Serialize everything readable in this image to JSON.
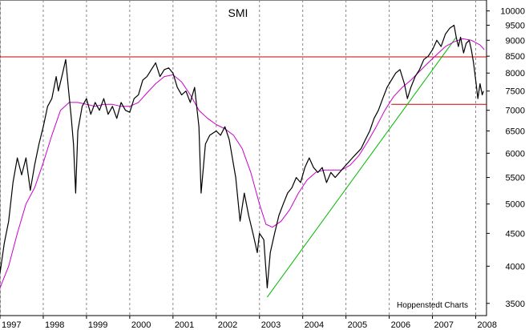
{
  "chart_data": {
    "type": "line",
    "title": "SMI",
    "credit": "Hoppenstedt Charts",
    "y_scale": "log",
    "ylim": [
      3350,
      10400
    ],
    "yticks": [
      3500,
      4000,
      4500,
      5000,
      5500,
      6000,
      6500,
      7000,
      7500,
      8000,
      8500,
      9000,
      9500,
      10000
    ],
    "xlim": [
      1997.0,
      2008.25
    ],
    "x_tick_labels": [
      "1997",
      "1998",
      "1999",
      "2000",
      "2001",
      "2002",
      "2003",
      "2004",
      "2005",
      "2006",
      "2007",
      "2008"
    ],
    "grid": "vertical dashed",
    "colors": {
      "price": "#000000",
      "average": "#cc00cc",
      "resistance": "#cc0000",
      "trend": "#00bb00"
    },
    "series": [
      {
        "name": "",
        "role": "price",
        "points": [
          [
            1997.0,
            3900
          ],
          [
            1997.1,
            4350
          ],
          [
            1997.2,
            4700
          ],
          [
            1997.3,
            5400
          ],
          [
            1997.4,
            5900
          ],
          [
            1997.5,
            5550
          ],
          [
            1997.6,
            5900
          ],
          [
            1997.7,
            5250
          ],
          [
            1997.8,
            5750
          ],
          [
            1997.9,
            6200
          ],
          [
            1998.0,
            6600
          ],
          [
            1998.1,
            7100
          ],
          [
            1998.2,
            7300
          ],
          [
            1998.3,
            7900
          ],
          [
            1998.35,
            7500
          ],
          [
            1998.45,
            8000
          ],
          [
            1998.52,
            8400
          ],
          [
            1998.58,
            7600
          ],
          [
            1998.65,
            6800
          ],
          [
            1998.7,
            6200
          ],
          [
            1998.75,
            5200
          ],
          [
            1998.8,
            6500
          ],
          [
            1998.9,
            7100
          ],
          [
            1999.0,
            7300
          ],
          [
            1999.1,
            6900
          ],
          [
            1999.2,
            7200
          ],
          [
            1999.3,
            7000
          ],
          [
            1999.4,
            7300
          ],
          [
            1999.5,
            6900
          ],
          [
            1999.6,
            7100
          ],
          [
            1999.7,
            6800
          ],
          [
            1999.8,
            7200
          ],
          [
            1999.9,
            7000
          ],
          [
            2000.0,
            6950
          ],
          [
            2000.1,
            7300
          ],
          [
            2000.2,
            7400
          ],
          [
            2000.3,
            7800
          ],
          [
            2000.4,
            7900
          ],
          [
            2000.5,
            8100
          ],
          [
            2000.6,
            8300
          ],
          [
            2000.7,
            7900
          ],
          [
            2000.8,
            8100
          ],
          [
            2000.9,
            8150
          ],
          [
            2001.0,
            8000
          ],
          [
            2001.1,
            7600
          ],
          [
            2001.2,
            7400
          ],
          [
            2001.3,
            7500
          ],
          [
            2001.4,
            7200
          ],
          [
            2001.5,
            7600
          ],
          [
            2001.6,
            6600
          ],
          [
            2001.65,
            5200
          ],
          [
            2001.75,
            6200
          ],
          [
            2001.85,
            6400
          ],
          [
            2002.0,
            6500
          ],
          [
            2002.1,
            6400
          ],
          [
            2002.2,
            6600
          ],
          [
            2002.3,
            6300
          ],
          [
            2002.45,
            5500
          ],
          [
            2002.55,
            4700
          ],
          [
            2002.65,
            5200
          ],
          [
            2002.75,
            4800
          ],
          [
            2002.85,
            4500
          ],
          [
            2002.95,
            4200
          ],
          [
            2003.0,
            4500
          ],
          [
            2003.1,
            4400
          ],
          [
            2003.18,
            3700
          ],
          [
            2003.25,
            4200
          ],
          [
            2003.35,
            4500
          ],
          [
            2003.45,
            4800
          ],
          [
            2003.55,
            5000
          ],
          [
            2003.65,
            5200
          ],
          [
            2003.75,
            5300
          ],
          [
            2003.85,
            5500
          ],
          [
            2003.95,
            5400
          ],
          [
            2004.05,
            5700
          ],
          [
            2004.15,
            5900
          ],
          [
            2004.25,
            5700
          ],
          [
            2004.35,
            5600
          ],
          [
            2004.45,
            5700
          ],
          [
            2004.55,
            5400
          ],
          [
            2004.65,
            5600
          ],
          [
            2004.75,
            5500
          ],
          [
            2004.85,
            5600
          ],
          [
            2004.95,
            5700
          ],
          [
            2005.05,
            5800
          ],
          [
            2005.15,
            5900
          ],
          [
            2005.25,
            6000
          ],
          [
            2005.35,
            6100
          ],
          [
            2005.45,
            6300
          ],
          [
            2005.55,
            6500
          ],
          [
            2005.65,
            6800
          ],
          [
            2005.75,
            7000
          ],
          [
            2005.85,
            7300
          ],
          [
            2005.95,
            7600
          ],
          [
            2006.05,
            7800
          ],
          [
            2006.15,
            8000
          ],
          [
            2006.25,
            8100
          ],
          [
            2006.35,
            7700
          ],
          [
            2006.42,
            7300
          ],
          [
            2006.5,
            7600
          ],
          [
            2006.6,
            7900
          ],
          [
            2006.7,
            8100
          ],
          [
            2006.8,
            8400
          ],
          [
            2006.9,
            8500
          ],
          [
            2007.0,
            8700
          ],
          [
            2007.1,
            9000
          ],
          [
            2007.2,
            8800
          ],
          [
            2007.3,
            9200
          ],
          [
            2007.4,
            9400
          ],
          [
            2007.5,
            9500
          ],
          [
            2007.55,
            9100
          ],
          [
            2007.6,
            8800
          ],
          [
            2007.65,
            9100
          ],
          [
            2007.72,
            8600
          ],
          [
            2007.78,
            8900
          ],
          [
            2007.85,
            9000
          ],
          [
            2007.9,
            8700
          ],
          [
            2007.95,
            8300
          ],
          [
            2008.0,
            7800
          ],
          [
            2008.05,
            7300
          ],
          [
            2008.1,
            7700
          ],
          [
            2008.15,
            7400
          ],
          [
            2008.18,
            7500
          ]
        ]
      },
      {
        "name": "",
        "role": "average",
        "points": [
          [
            1997.0,
            3700
          ],
          [
            1997.2,
            4000
          ],
          [
            1997.4,
            4500
          ],
          [
            1997.6,
            5000
          ],
          [
            1997.8,
            5300
          ],
          [
            1998.0,
            5800
          ],
          [
            1998.2,
            6400
          ],
          [
            1998.4,
            7000
          ],
          [
            1998.6,
            7200
          ],
          [
            1998.8,
            7200
          ],
          [
            1999.0,
            7150
          ],
          [
            1999.2,
            7100
          ],
          [
            1999.4,
            7150
          ],
          [
            1999.6,
            7150
          ],
          [
            1999.8,
            7100
          ],
          [
            2000.0,
            7100
          ],
          [
            2000.2,
            7200
          ],
          [
            2000.4,
            7450
          ],
          [
            2000.6,
            7700
          ],
          [
            2000.8,
            7900
          ],
          [
            2001.0,
            7950
          ],
          [
            2001.2,
            7750
          ],
          [
            2001.4,
            7400
          ],
          [
            2001.6,
            7000
          ],
          [
            2001.8,
            6800
          ],
          [
            2002.0,
            6650
          ],
          [
            2002.2,
            6550
          ],
          [
            2002.4,
            6400
          ],
          [
            2002.6,
            6100
          ],
          [
            2002.8,
            5600
          ],
          [
            2003.0,
            5000
          ],
          [
            2003.15,
            4650
          ],
          [
            2003.3,
            4600
          ],
          [
            2003.5,
            4700
          ],
          [
            2003.7,
            4900
          ],
          [
            2003.9,
            5200
          ],
          [
            2004.1,
            5450
          ],
          [
            2004.3,
            5600
          ],
          [
            2004.5,
            5650
          ],
          [
            2004.7,
            5650
          ],
          [
            2004.9,
            5650
          ],
          [
            2005.1,
            5750
          ],
          [
            2005.3,
            5950
          ],
          [
            2005.5,
            6250
          ],
          [
            2005.7,
            6600
          ],
          [
            2005.9,
            7000
          ],
          [
            2006.1,
            7350
          ],
          [
            2006.3,
            7600
          ],
          [
            2006.5,
            7800
          ],
          [
            2006.7,
            8050
          ],
          [
            2006.9,
            8300
          ],
          [
            2007.1,
            8550
          ],
          [
            2007.3,
            8800
          ],
          [
            2007.5,
            8950
          ],
          [
            2007.7,
            9050
          ],
          [
            2007.9,
            9000
          ],
          [
            2008.1,
            8850
          ],
          [
            2008.2,
            8700
          ]
        ]
      },
      {
        "name": "",
        "role": "resistance",
        "points": [
          [
            1997.0,
            8480
          ],
          [
            2008.25,
            8480
          ]
        ]
      },
      {
        "name": "",
        "role": "support",
        "points": [
          [
            2006.05,
            7150
          ],
          [
            2008.25,
            7150
          ]
        ]
      },
      {
        "name": "",
        "role": "trend",
        "points": [
          [
            2003.18,
            3580
          ],
          [
            2007.55,
            9100
          ]
        ]
      }
    ]
  }
}
